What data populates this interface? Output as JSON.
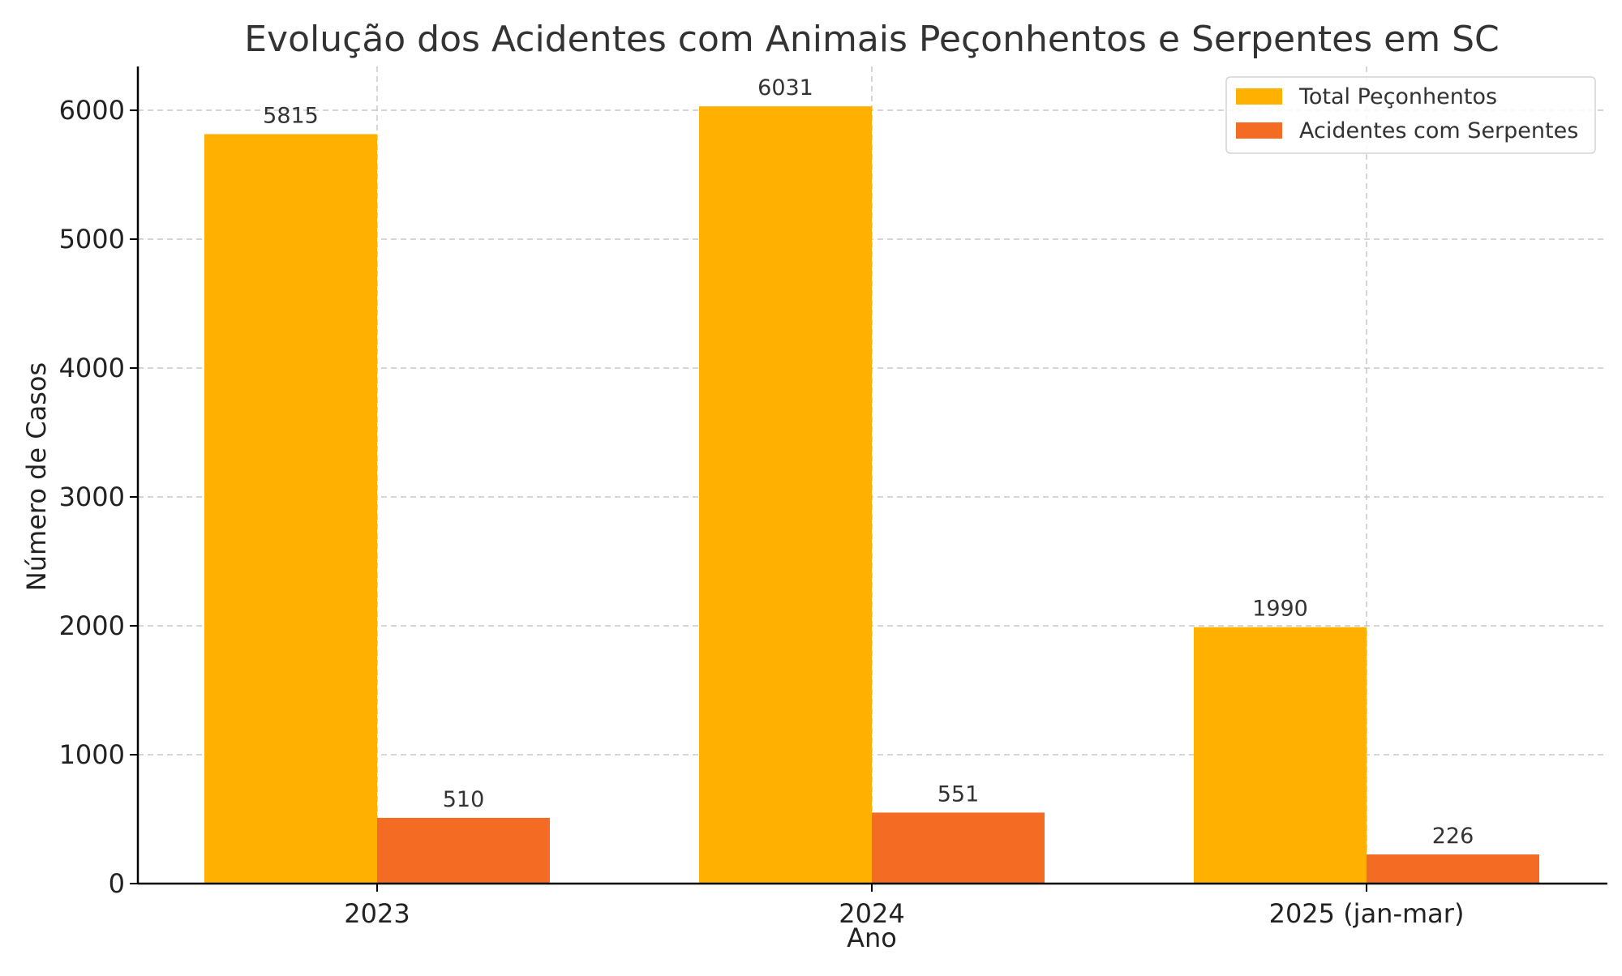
{
  "chart_data": {
    "type": "bar",
    "title": "Evolução dos Acidentes com Animais Peçonhentos e Serpentes em SC",
    "xlabel": "Ano",
    "ylabel": "Número de Casos",
    "categories": [
      "2023",
      "2024",
      "2025 (jan-mar)"
    ],
    "series": [
      {
        "name": "Total Peçonhentos",
        "values": [
          5815,
          6031,
          1990
        ],
        "color": "#FFB000"
      },
      {
        "name": "Acidentes com Serpentes",
        "values": [
          510,
          551,
          226
        ],
        "color": "#F46B23"
      }
    ],
    "ylim": [
      0,
      6340
    ],
    "yticks": [
      0,
      1000,
      2000,
      3000,
      4000,
      5000,
      6000
    ],
    "grid": true,
    "legend_position": "top-right",
    "data_labels": true
  }
}
